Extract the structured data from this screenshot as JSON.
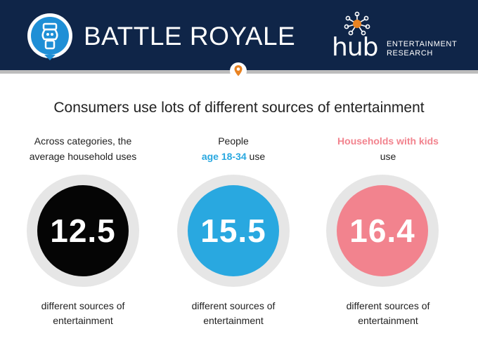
{
  "header": {
    "title": "BATTLE ROYALE",
    "logo": {
      "word": "hub",
      "line1": "ENTERTAINMENT",
      "line2": "RESEARCH"
    },
    "icons": {
      "badge": "joystick-badge-icon",
      "pin": "location-pin-icon",
      "logo": "hub-network-logo-icon"
    }
  },
  "subtitle": "Consumers use lots of different sources of entertainment",
  "stats": [
    {
      "intro_line1": "Across categories, the",
      "intro_line2": "average household uses",
      "value": "12.5",
      "color": "#050505",
      "outro_line1": "different sources of",
      "outro_line2": "entertainment"
    },
    {
      "intro_line1": "People",
      "intro_highlight": "age 18-34",
      "intro_after": " use",
      "value": "15.5",
      "color": "#29a8e0",
      "outro_line1": "different sources of",
      "outro_line2": "entertainment"
    },
    {
      "intro_highlight": "Households with kids",
      "intro_line2": "use",
      "value": "16.4",
      "color": "#f2838e",
      "outro_line1": "different sources of",
      "outro_line2": "entertainment"
    }
  ]
}
